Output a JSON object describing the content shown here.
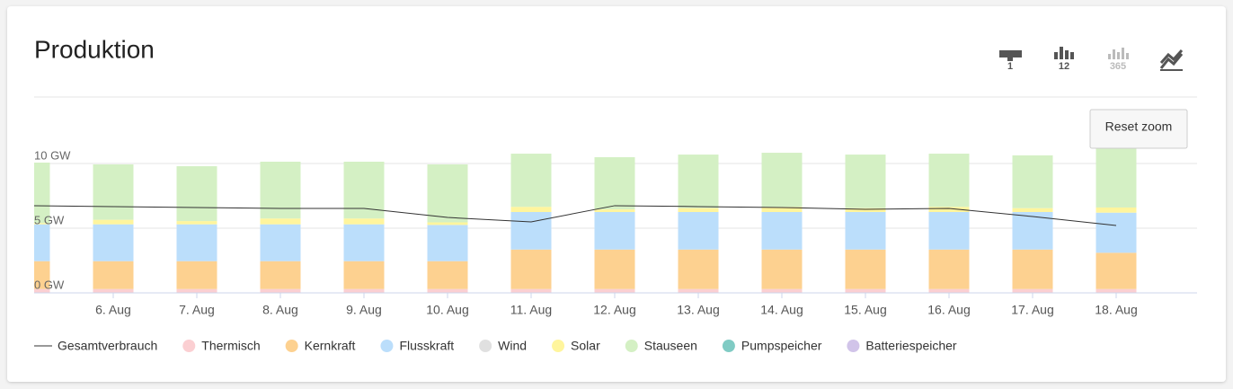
{
  "chart_data": {
    "type": "bar",
    "stacked": true,
    "title": "Produktion",
    "categories": [
      null,
      "6. Aug",
      "7. Aug",
      "8. Aug",
      "9. Aug",
      "10. Aug",
      "11. Aug",
      "12. Aug",
      "13. Aug",
      "14. Aug",
      "15. Aug",
      "16. Aug",
      "17. Aug",
      "18. Aug"
    ],
    "series": [
      {
        "name": "Gesamtverbrauch",
        "type": "line",
        "color": "#333333",
        "values": [
          6.74,
          6.67,
          6.6,
          6.53,
          6.53,
          5.83,
          5.49,
          6.74,
          6.67,
          6.6,
          6.46,
          6.53,
          5.9,
          5.21
        ]
      },
      {
        "name": "Thermisch",
        "color": "#fbcfd2",
        "values": [
          0.3,
          0.3,
          0.3,
          0.3,
          0.3,
          0.3,
          0.3,
          0.3,
          0.3,
          0.3,
          0.3,
          0.3,
          0.3,
          0.3
        ]
      },
      {
        "name": "Kernkraft",
        "color": "#fdd190",
        "values": [
          2.15,
          2.15,
          2.15,
          2.15,
          2.15,
          2.15,
          3.05,
          3.05,
          3.05,
          3.05,
          3.05,
          3.05,
          3.05,
          2.8
        ]
      },
      {
        "name": "Flusskraft",
        "color": "#bbdefb",
        "values": [
          2.85,
          2.85,
          2.85,
          2.85,
          2.85,
          2.8,
          2.9,
          2.9,
          2.9,
          2.9,
          2.9,
          2.9,
          2.9,
          3.1
        ]
      },
      {
        "name": "Wind",
        "color": "#e0e0e0",
        "values": [
          0,
          0,
          0,
          0,
          0,
          0,
          0,
          0,
          0,
          0,
          0,
          0,
          0,
          0
        ]
      },
      {
        "name": "Solar",
        "color": "#fff59d",
        "values": [
          0.1,
          0.35,
          0.25,
          0.45,
          0.45,
          0.2,
          0.4,
          0.2,
          0.3,
          0.4,
          0.3,
          0.4,
          0.3,
          0.4
        ]
      },
      {
        "name": "Stauseen",
        "color": "#d4f0c4",
        "values": [
          4.67,
          4.28,
          4.24,
          4.39,
          4.39,
          4.48,
          4.11,
          4.04,
          4.14,
          4.18,
          4.14,
          4.11,
          4.08,
          4.58
        ]
      },
      {
        "name": "Pumpspeicher",
        "color": "#80cbc4",
        "values": [
          0,
          0,
          0,
          0,
          0,
          0,
          0,
          0,
          0,
          0,
          0,
          0,
          0,
          0
        ]
      },
      {
        "name": "Batteriespeicher",
        "color": "#d1c4e9",
        "values": [
          0,
          0,
          0,
          0,
          0,
          0,
          0,
          0,
          0,
          0,
          0,
          0,
          0,
          0
        ]
      }
    ],
    "ylim": [
      0,
      15
    ],
    "yticks": [
      {
        "value": 0,
        "label": "0 GW"
      },
      {
        "value": 5,
        "label": "5 GW"
      },
      {
        "value": 10,
        "label": "10 GW"
      }
    ],
    "grid": true,
    "legend": "bottom"
  },
  "ui": {
    "view_buttons": [
      "1",
      "12",
      "365"
    ],
    "reset_zoom": "Reset zoom"
  }
}
